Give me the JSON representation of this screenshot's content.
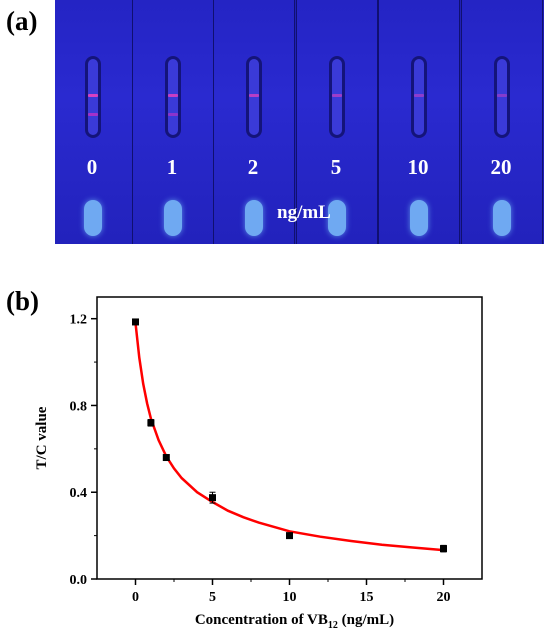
{
  "panels": {
    "a": "(a)",
    "b": "(b)"
  },
  "photo": {
    "concentrations": [
      "0",
      "1",
      "2",
      "5",
      "10",
      "20"
    ],
    "unit": "ng/mL",
    "background_color": "#1f1fb4",
    "line_color": "#e040c0"
  },
  "chart_data": {
    "type": "scatter",
    "xlabel_main": "Concentration of VB",
    "xlabel_sub": "12",
    "xlabel_tail": " (ng/mL)",
    "ylabel": "T/C value",
    "xlim": [
      -2.5,
      22.5
    ],
    "ylim": [
      0.0,
      1.3
    ],
    "xticks": [
      0,
      5,
      10,
      15,
      20
    ],
    "xtick_labels": [
      "0",
      "5",
      "10",
      "15",
      "20"
    ],
    "yticks": [
      0.0,
      0.4,
      0.8,
      1.2
    ],
    "ytick_labels": [
      "0.0",
      "0.4",
      "0.8",
      "1.2"
    ],
    "series": [
      {
        "x": [
          0,
          1,
          2,
          5,
          10,
          20
        ],
        "y": [
          1.185,
          0.72,
          0.56,
          0.375,
          0.2,
          0.14
        ],
        "yerr": [
          0.01,
          0.015,
          0.01,
          0.025,
          0.01,
          0.015
        ],
        "marker_color": "#000000"
      }
    ],
    "fit_curve": {
      "color": "#ff0000",
      "x": [
        0,
        0.25,
        0.5,
        0.75,
        1,
        1.5,
        2,
        2.5,
        3,
        4,
        5,
        6,
        7,
        8,
        10,
        12,
        14,
        16,
        18,
        20
      ],
      "y": [
        1.18,
        1.02,
        0.9,
        0.81,
        0.74,
        0.64,
        0.565,
        0.51,
        0.465,
        0.4,
        0.355,
        0.315,
        0.285,
        0.26,
        0.22,
        0.195,
        0.175,
        0.158,
        0.145,
        0.133
      ]
    },
    "grid": false,
    "legend": "none"
  }
}
